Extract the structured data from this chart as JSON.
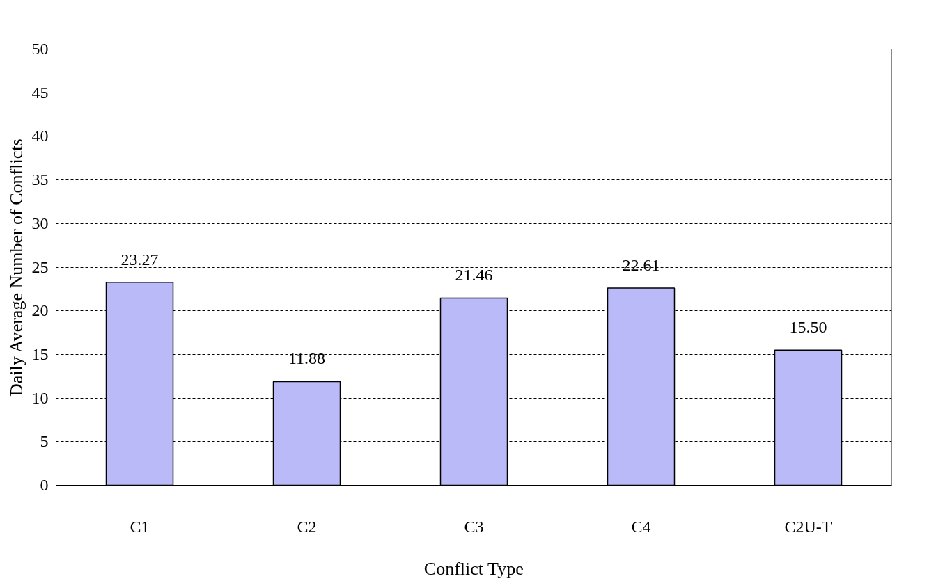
{
  "chart_data": {
    "type": "bar",
    "xlabel": "Conflict Type",
    "ylabel": "Daily Average Number of Conflicts",
    "categories": [
      "C1",
      "C2",
      "C3",
      "C4",
      "C2U-T"
    ],
    "values": [
      23.27,
      11.88,
      21.46,
      22.61,
      15.5
    ],
    "value_labels": [
      "23.27",
      "11.88",
      "21.46",
      "22.61",
      "15.50"
    ],
    "color": "#babaf8",
    "ylim": [
      0,
      50
    ],
    "yticks": [
      0,
      5,
      10,
      15,
      20,
      25,
      30,
      35,
      40,
      45,
      50
    ],
    "grid": "y"
  }
}
